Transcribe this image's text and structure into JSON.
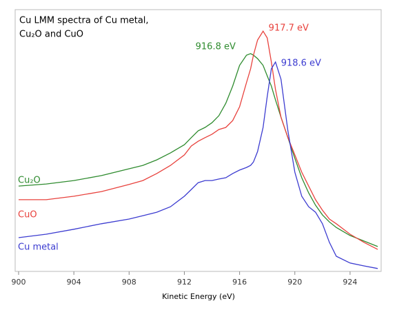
{
  "chart_data": {
    "type": "line",
    "title": [
      "Cu LMM spectra of Cu metal,",
      "Cu₂O and CuO"
    ],
    "xlabel": "Kinetic Energy (eV)",
    "x": [
      900,
      902,
      904,
      906,
      908,
      909,
      910,
      911,
      912,
      912.5,
      913,
      913.5,
      914,
      914.5,
      915,
      915.5,
      916,
      916.5,
      916.8,
      917,
      917.3,
      917.7,
      918,
      918.3,
      918.6,
      919,
      919.5,
      920,
      920.5,
      921,
      921.5,
      922,
      922.5,
      923,
      924,
      925,
      926
    ],
    "series": [
      {
        "name": "Cu₂O",
        "color": "#2e8b2e",
        "values": [
          32.6,
          33.4,
          34.7,
          36.6,
          39.2,
          40.5,
          42.6,
          45.3,
          48.4,
          51.1,
          53.7,
          55.0,
          56.8,
          59.5,
          64.2,
          70.8,
          78.7,
          82.6,
          83.2,
          82.6,
          81.3,
          78.7,
          74.7,
          70.8,
          65.5,
          58.9,
          51.1,
          43.2,
          35.8,
          30.0,
          25.3,
          21.6,
          18.9,
          16.8,
          13.7,
          11.6,
          9.5
        ]
      },
      {
        "name": "CuO",
        "color": "#e8413c",
        "values": [
          27.4,
          27.4,
          28.7,
          30.5,
          33.2,
          34.7,
          37.4,
          40.5,
          44.5,
          47.9,
          49.7,
          51.1,
          52.4,
          54.2,
          55.0,
          57.6,
          62.9,
          72.1,
          77.4,
          82.6,
          88.4,
          91.8,
          89.2,
          80.0,
          69.5,
          58.9,
          51.1,
          44.5,
          37.9,
          32.6,
          27.4,
          23.4,
          20.0,
          18.2,
          14.2,
          11.1,
          8.4
        ]
      },
      {
        "name": "Cu metal",
        "color": "#3b3bd0",
        "values": [
          12.9,
          14.2,
          16.1,
          18.2,
          20.0,
          21.3,
          22.6,
          24.7,
          28.7,
          31.3,
          33.9,
          34.7,
          34.7,
          35.3,
          35.8,
          37.4,
          38.7,
          39.7,
          40.5,
          41.8,
          45.8,
          55.0,
          66.8,
          77.4,
          80.0,
          73.4,
          53.7,
          37.9,
          28.7,
          24.7,
          22.6,
          18.2,
          11.1,
          5.8,
          3.2,
          2.1,
          1.1
        ]
      }
    ],
    "annotations": [
      {
        "text": "917.7 eV",
        "x": 917.7,
        "color": "#e8413c"
      },
      {
        "text": "916.8 eV",
        "x": 916.8,
        "color": "#2e8b2e"
      },
      {
        "text": "918.6 eV",
        "x": 918.6,
        "color": "#3b3bd0"
      }
    ],
    "xlim": [
      899.75,
      926.25
    ],
    "ylim": [
      0,
      100
    ],
    "xticks": [
      900,
      904,
      908,
      912,
      916,
      920,
      924
    ]
  }
}
